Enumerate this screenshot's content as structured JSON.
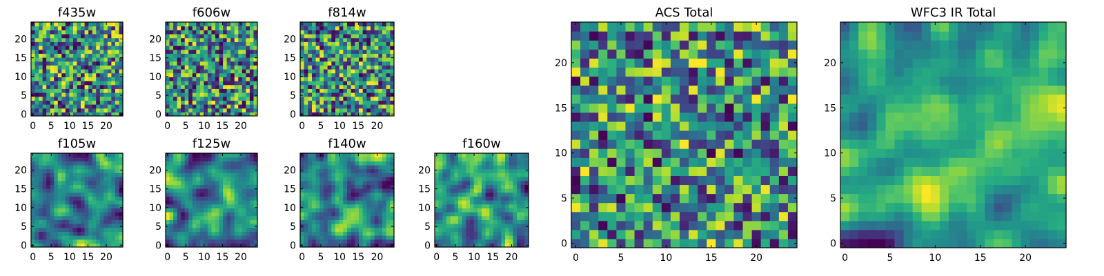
{
  "chart_data": [
    {
      "type": "heatmap",
      "title": "f435w",
      "xlim": [
        0,
        24
      ],
      "ylim": [
        0,
        24
      ],
      "grid": false,
      "xticks": [
        "0",
        "5",
        "10",
        "15",
        "20"
      ],
      "yticks": [
        "0",
        "5",
        "10",
        "15",
        "20"
      ],
      "resolution": 24,
      "smoothing": 0,
      "seed": 11
    },
    {
      "type": "heatmap",
      "title": "f606w",
      "xlim": [
        0,
        24
      ],
      "ylim": [
        0,
        24
      ],
      "grid": false,
      "xticks": [
        "0",
        "5",
        "10",
        "15",
        "20"
      ],
      "yticks": [
        "0",
        "5",
        "10",
        "15",
        "20"
      ],
      "resolution": 24,
      "smoothing": 0,
      "seed": 23
    },
    {
      "type": "heatmap",
      "title": "f814w",
      "xlim": [
        0,
        24
      ],
      "ylim": [
        0,
        24
      ],
      "grid": false,
      "xticks": [
        "0",
        "5",
        "10",
        "15",
        "20"
      ],
      "yticks": [
        "0",
        "5",
        "10",
        "15",
        "20"
      ],
      "resolution": 24,
      "smoothing": 0,
      "seed": 37
    },
    {
      "type": "heatmap",
      "title": "f105w",
      "xlim": [
        0,
        24
      ],
      "ylim": [
        0,
        24
      ],
      "grid": false,
      "xticks": [
        "0",
        "5",
        "10",
        "15",
        "20"
      ],
      "yticks": [
        "0",
        "5",
        "10",
        "15",
        "20"
      ],
      "resolution": 24,
      "smoothing": 2,
      "seed": 41
    },
    {
      "type": "heatmap",
      "title": "f125w",
      "xlim": [
        0,
        24
      ],
      "ylim": [
        0,
        24
      ],
      "grid": false,
      "xticks": [
        "0",
        "5",
        "10",
        "15",
        "20"
      ],
      "yticks": [
        "0",
        "5",
        "10",
        "15",
        "20"
      ],
      "resolution": 24,
      "smoothing": 2,
      "seed": 53
    },
    {
      "type": "heatmap",
      "title": "f140w",
      "xlim": [
        0,
        24
      ],
      "ylim": [
        0,
        24
      ],
      "grid": false,
      "xticks": [
        "0",
        "5",
        "10",
        "15",
        "20"
      ],
      "yticks": [
        "0",
        "5",
        "10",
        "15",
        "20"
      ],
      "resolution": 24,
      "smoothing": 2,
      "seed": 67
    },
    {
      "type": "heatmap",
      "title": "f160w",
      "xlim": [
        0,
        24
      ],
      "ylim": [
        0,
        24
      ],
      "grid": false,
      "xticks": [
        "0",
        "5",
        "10",
        "15",
        "20"
      ],
      "yticks": [
        "0",
        "5",
        "10",
        "15",
        "20"
      ],
      "resolution": 24,
      "smoothing": 2,
      "seed": 79
    },
    {
      "type": "heatmap",
      "title": "ACS Total",
      "xlim": [
        0,
        24
      ],
      "ylim": [
        0,
        24
      ],
      "grid": false,
      "xticks": [
        "0",
        "5",
        "10",
        "15",
        "20"
      ],
      "yticks": [
        "0",
        "5",
        "10",
        "15",
        "20"
      ],
      "resolution": 25,
      "smoothing": 0,
      "seed": 89
    },
    {
      "type": "heatmap",
      "title": "WFC3 IR Total",
      "xlim": [
        0,
        24
      ],
      "ylim": [
        0,
        24
      ],
      "grid": false,
      "xticks": [
        "0",
        "5",
        "10",
        "15",
        "20"
      ],
      "yticks": [
        "0",
        "5",
        "10",
        "15",
        "20"
      ],
      "resolution": 25,
      "smoothing": 2,
      "seed": 97
    }
  ],
  "colormap": "viridis",
  "colors": {
    "cmap_low": "#440154",
    "cmap_mid": "#21918c",
    "cmap_high": "#fde725",
    "axes": "#000000"
  }
}
